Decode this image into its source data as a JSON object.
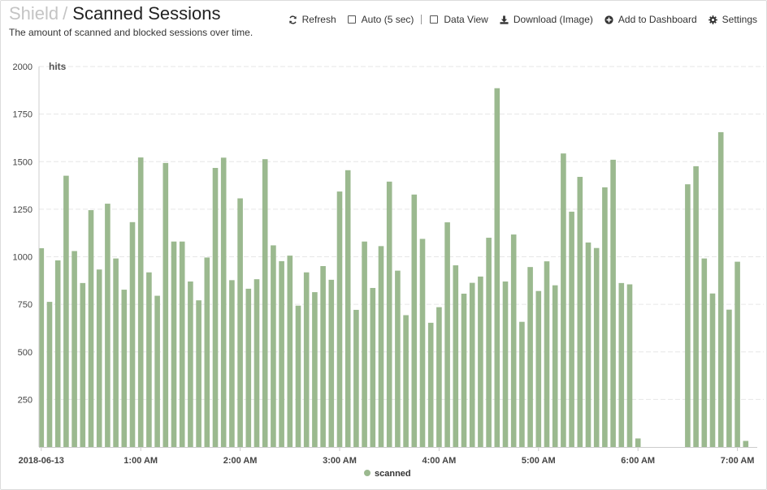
{
  "header": {
    "breadcrumb_parent": "Shield",
    "separator": "/",
    "title": "Scanned Sessions",
    "subtitle": "The amount of scanned and blocked sessions over time."
  },
  "toolbar": {
    "refresh_label": "Refresh",
    "auto_label": "Auto (5 sec)",
    "data_view_label": "Data View",
    "download_label": "Download (Image)",
    "add_dashboard_label": "Add to Dashboard",
    "settings_label": "Settings"
  },
  "colors": {
    "bar": "#9bb98f",
    "grid": "#e6e6e6",
    "axis": "#cccccc",
    "text": "#333333"
  },
  "chart_data": {
    "type": "bar",
    "ylabel": "hits",
    "ylim": [
      0,
      2000
    ],
    "yticks": [
      250,
      500,
      750,
      1000,
      1250,
      1500,
      1750,
      2000
    ],
    "x_tick_labels": [
      "2018-06-13",
      "1:00 AM",
      "2:00 AM",
      "3:00 AM",
      "4:00 AM",
      "5:00 AM",
      "6:00 AM",
      "7:00 AM"
    ],
    "interval_minutes": 5,
    "grid": true,
    "legend_position": "bottom-center",
    "series": [
      {
        "name": "scanned",
        "values": [
          1045,
          763,
          981,
          1426,
          1030,
          862,
          1245,
          933,
          1279,
          991,
          827,
          1182,
          1522,
          918,
          795,
          1493,
          1080,
          1080,
          870,
          771,
          996,
          1467,
          1521,
          877,
          1307,
          832,
          882,
          1513,
          1060,
          977,
          1006,
          743,
          918,
          814,
          951,
          879,
          1343,
          1455,
          721,
          1080,
          836,
          1056,
          1395,
          927,
          693,
          1327,
          1094,
          653,
          735,
          1181,
          955,
          806,
          863,
          896,
          1100,
          1886,
          870,
          1117,
          658,
          946,
          820,
          976,
          850,
          1543,
          1237,
          1420,
          1075,
          1046,
          1365,
          1510,
          862,
          855,
          45,
          0,
          0,
          0,
          0,
          0,
          1381,
          1476,
          991,
          807,
          1655,
          722,
          974,
          32
        ]
      }
    ]
  }
}
